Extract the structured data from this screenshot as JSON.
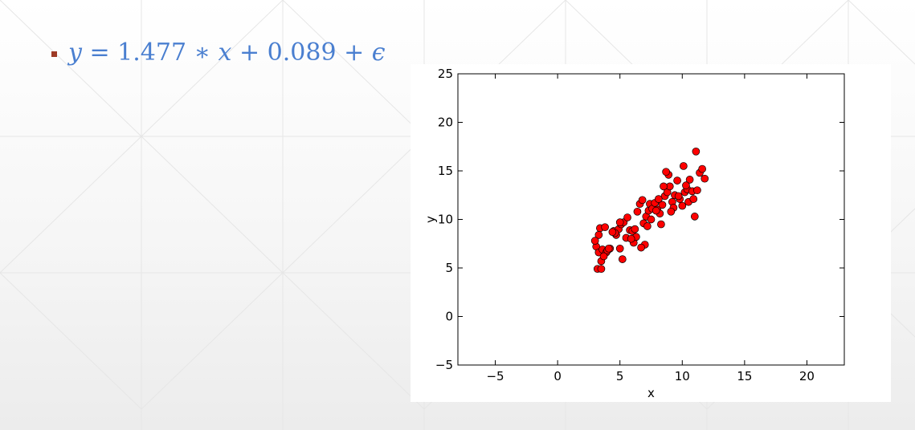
{
  "slide": {
    "bullet": {
      "parts": [
        "y",
        " = 1.477 ∗ ",
        "x",
        " + 0.089 + ",
        "ϵ"
      ]
    }
  },
  "colors": {
    "equation": "#4a7fd0",
    "bullet_marker": "#9e3a26",
    "points": "#ff0000",
    "point_edge": "#000000"
  },
  "chart_data": {
    "type": "scatter",
    "title": "",
    "xlabel": "x",
    "ylabel": "y",
    "xlim": [
      -8,
      23
    ],
    "ylim": [
      -5,
      25
    ],
    "xticks": [
      -5,
      0,
      5,
      10,
      15,
      20
    ],
    "yticks": [
      -5,
      0,
      5,
      10,
      15,
      20,
      25
    ],
    "xtick_labels": [
      "−5",
      "0",
      "5",
      "10",
      "15",
      "20"
    ],
    "ytick_labels": [
      "−5",
      "0",
      "5",
      "10",
      "15",
      "20",
      "25"
    ],
    "grid": false,
    "marker": "circle",
    "series": [
      {
        "x": [
          3.1,
          3.3,
          3.5,
          3.2,
          3.4,
          3.6,
          3.8,
          3.3,
          3.5,
          3.9,
          4.0,
          4.2,
          3.7,
          4.5,
          4.7,
          4.9,
          5.0,
          5.2,
          4.6,
          5.5,
          5.8,
          5.1,
          5.3,
          6.0,
          6.2,
          5.6,
          6.4,
          6.6,
          6.8,
          6.1,
          6.9,
          7.1,
          7.3,
          7.4,
          7.6,
          7.8,
          7.2,
          8.0,
          8.2,
          7.5,
          8.4,
          8.6,
          8.1,
          8.8,
          9.0,
          8.5,
          9.2,
          9.4,
          8.9,
          9.6,
          9.8,
          9.3,
          10.0,
          10.2,
          9.7,
          10.4,
          10.6,
          10.1,
          10.8,
          11.0,
          10.5,
          11.2,
          11.4,
          11.6,
          11.8,
          11.1,
          4.1,
          5.0,
          6.3,
          7.0,
          7.9,
          8.3,
          9.1,
          10.3,
          10.9,
          6.7,
          5.9,
          4.4,
          3.0,
          8.7
        ],
        "y": [
          7.2,
          6.6,
          5.7,
          4.9,
          9.1,
          6.9,
          9.2,
          8.4,
          4.9,
          6.6,
          6.8,
          7.0,
          6.2,
          8.8,
          8.4,
          9.0,
          7.0,
          5.9,
          8.6,
          8.1,
          8.9,
          9.5,
          9.7,
          8.8,
          9.0,
          10.2,
          10.8,
          11.6,
          12.0,
          7.6,
          9.6,
          10.3,
          10.9,
          11.6,
          11.1,
          11.7,
          9.3,
          11.0,
          10.6,
          10.0,
          11.5,
          12.4,
          12.1,
          12.8,
          13.4,
          13.4,
          11.8,
          12.5,
          14.6,
          14.0,
          12.1,
          11.2,
          11.4,
          12.8,
          12.4,
          13.1,
          14.1,
          15.5,
          12.9,
          10.3,
          11.8,
          13.0,
          14.8,
          15.2,
          14.2,
          17.0,
          7.0,
          9.7,
          8.2,
          7.4,
          10.9,
          9.5,
          10.8,
          13.5,
          12.1,
          7.1,
          8.0,
          8.7,
          7.8,
          14.9
        ]
      }
    ]
  }
}
